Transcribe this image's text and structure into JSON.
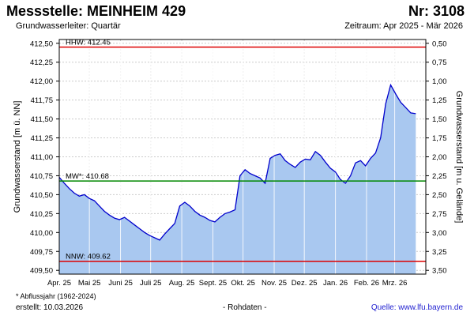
{
  "header": {
    "title": "Messstelle: MEINHEIM 429",
    "number": "Nr: 3108",
    "subtitle": "Grundwasserleiter: Quartär",
    "period": "Zeitraum: Apr 2025 - Mär 2026"
  },
  "footer": {
    "footnote": "* Abflussjahr (1962-2024)",
    "created": "erstellt:  10.03.2026",
    "rawdata": "- Rohdaten -",
    "source": "Quelle:  www.lfu.bayern.de"
  },
  "colors": {
    "fill": "#a9c8f0",
    "line": "#0000cc",
    "hhw": "#dd0000",
    "nnw": "#dd0000",
    "mw": "#008800",
    "grid": "#cccccc",
    "monthline": "#ffffff"
  },
  "chart_data": {
    "type": "area",
    "ylabel_left": "Grundwasserstand [m ü. NN]",
    "ylabel_right": "Grundwasserstand [m u. Gelände]",
    "ylim": [
      409.45,
      412.55
    ],
    "yticks_left": [
      "409,50",
      "409,75",
      "410,00",
      "410,25",
      "410,50",
      "410,75",
      "411,00",
      "411,25",
      "411,50",
      "411,75",
      "412,00",
      "412,25",
      "412,50"
    ],
    "yticks_right": [
      "0,50",
      "0,75",
      "1,00",
      "1,25",
      "1,50",
      "1,75",
      "2,00",
      "2,25",
      "2,50",
      "2,75",
      "3,00",
      "3,25",
      "3,50"
    ],
    "months": [
      "Apr. 25",
      "Mai 25",
      "Juni 25",
      "Juli 25",
      "Aug. 25",
      "Sept. 25",
      "Okt. 25",
      "Nov. 25",
      "Dez. 25",
      "Jan. 26",
      "Feb. 26",
      "Mrz. 26"
    ],
    "reference_lines": [
      {
        "label": "HHW: 412.45",
        "value": 412.45
      },
      {
        "label": "MW*: 410.68",
        "value": 410.68
      },
      {
        "label": "NNW: 409.62",
        "value": 409.62
      }
    ],
    "x_unit": "day of period (0 = 1 Apr 2025)",
    "x": [
      0,
      5,
      10,
      15,
      20,
      25,
      30,
      35,
      40,
      45,
      50,
      55,
      60,
      65,
      70,
      75,
      80,
      85,
      90,
      95,
      100,
      105,
      110,
      115,
      120,
      125,
      130,
      135,
      140,
      145,
      150,
      155,
      160,
      165,
      170,
      175,
      180,
      185,
      190,
      195,
      200,
      205,
      210,
      215,
      220,
      225,
      230,
      235,
      240,
      245,
      250,
      255,
      260,
      265,
      270,
      275,
      280,
      285,
      290,
      295,
      300,
      305,
      310,
      315,
      320,
      325,
      330,
      335,
      340,
      345,
      350,
      355
    ],
    "y": [
      410.73,
      410.65,
      410.58,
      410.52,
      410.48,
      410.5,
      410.45,
      410.42,
      410.35,
      410.28,
      410.23,
      410.19,
      410.17,
      410.2,
      410.15,
      410.1,
      410.05,
      410.0,
      409.96,
      409.93,
      409.9,
      409.98,
      410.05,
      410.12,
      410.35,
      410.4,
      410.35,
      410.28,
      410.23,
      410.2,
      410.16,
      410.14,
      410.2,
      410.25,
      410.27,
      410.3,
      410.75,
      410.83,
      410.78,
      410.75,
      410.72,
      410.65,
      410.98,
      411.02,
      411.04,
      410.95,
      410.9,
      410.86,
      410.93,
      410.97,
      410.96,
      411.07,
      411.02,
      410.93,
      410.85,
      410.8,
      410.7,
      410.65,
      410.75,
      410.92,
      410.95,
      410.88,
      410.98,
      411.05,
      411.25,
      411.7,
      411.95,
      411.83,
      411.72,
      411.65,
      411.58,
      411.57
    ]
  }
}
